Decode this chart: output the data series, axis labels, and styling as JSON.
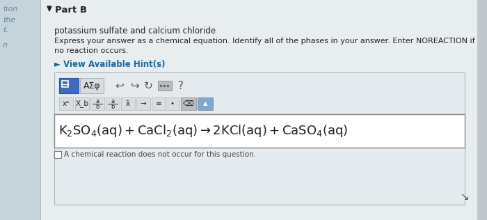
{
  "bg_color": "#e8edf0",
  "left_panel_color": "#c5d3da",
  "left_panel_text_lines": [
    "tion",
    "the",
    "t.",
    "n"
  ],
  "left_panel_text_color": "#6688aa",
  "part_b_label": "Part B",
  "subtitle": "potassium sulfate and calcium chloride",
  "instruction_line1": "Express your answer as a chemical equation. Identify all of the phases in your answer. Enter NOREACTION if",
  "instruction_line2": "no reaction occurs.",
  "hint_link": "► View Available Hint(s)",
  "hint_color": "#1a6699",
  "toolbar_bg": "#e4eaed",
  "toolbar_border": "#b0b8be",
  "equation_box_bg": "#ffffff",
  "equation_box_border": "#888888",
  "checkbox_text": "A chemical reaction does not occur for this question.",
  "divider_color": "#b0b8be",
  "right_bar_color": "#c0c8cc",
  "blue_btn_color": "#3f6bbf",
  "blue_btn_border": "#2d55a0",
  "grey_btn_color": "#d8dde0",
  "grey_btn_border": "#b0b5b8",
  "dark_grey_btn_color": "#b8bec2",
  "icon_color": "#555555",
  "text_color_dark": "#222222",
  "text_color_mid": "#444444",
  "cursor_color": "#555555"
}
